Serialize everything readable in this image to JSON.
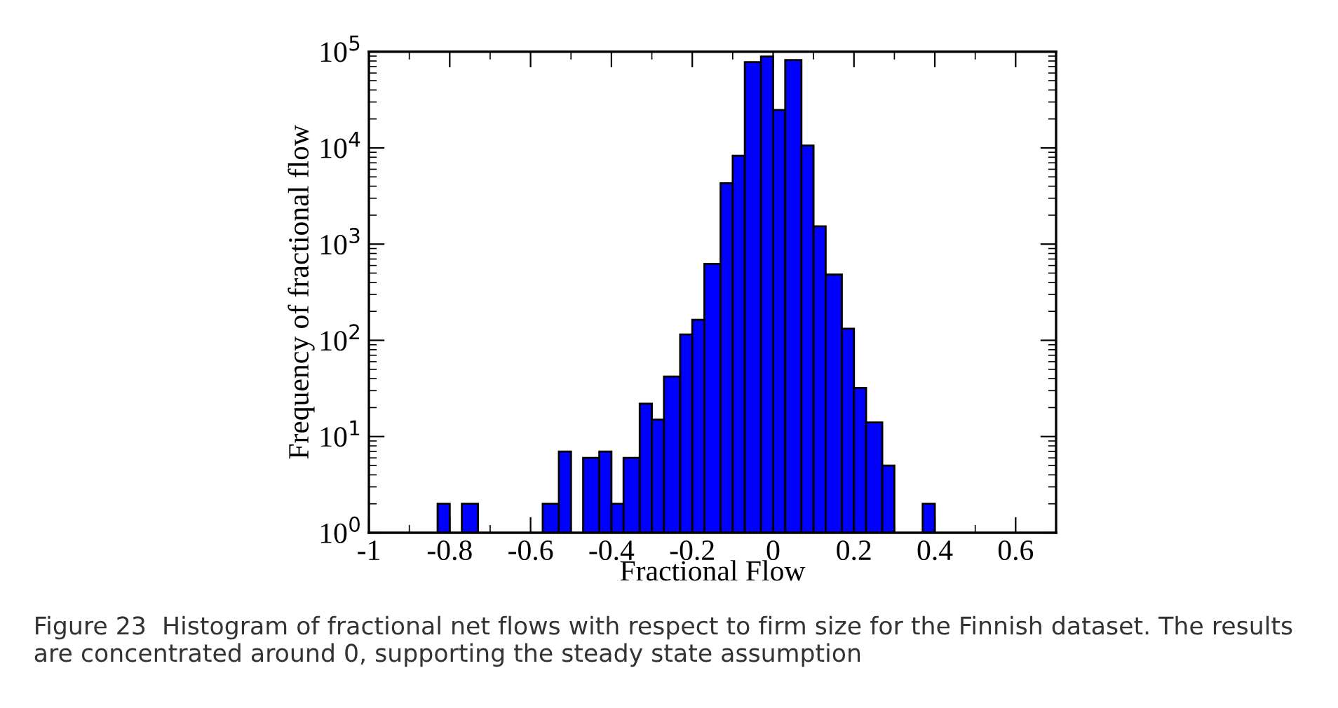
{
  "chart_data": {
    "type": "histogram",
    "xlabel": "Fractional Flow",
    "ylabel": "Frequency of fractional flow",
    "bins": [
      -0.83,
      -0.8,
      -0.77,
      -0.73,
      -0.57,
      -0.53,
      -0.5,
      -0.47,
      -0.43,
      -0.4,
      -0.37,
      -0.33,
      -0.3,
      -0.27,
      -0.23,
      -0.2,
      -0.17,
      -0.13,
      -0.1,
      -0.07,
      -0.03,
      0,
      0.03,
      0.07,
      0.1,
      0.13,
      0.17,
      0.2,
      0.23,
      0.27,
      0.3,
      0.37,
      0.4
    ],
    "values": [
      2,
      null,
      2,
      null,
      2,
      7,
      null,
      6,
      7,
      2,
      6,
      22,
      15,
      42,
      115,
      164,
      624,
      4300,
      8300,
      78000,
      89000,
      24800,
      82000,
      10600,
      1530,
      482,
      132,
      32,
      14,
      5,
      null,
      2
    ],
    "color": "#0000ff",
    "log": "y",
    "grid": false,
    "xlim": [
      -1,
      0.7
    ],
    "xticks": [
      -1,
      -0.8,
      -0.6,
      -0.4,
      -0.2,
      0,
      0.2,
      0.4,
      0.6
    ],
    "ylim": [
      1,
      100000
    ],
    "yticks": [
      {
        "value": 1,
        "label": "10$^{0}$"
      },
      {
        "value": 10,
        "label": "10$^{1}$"
      },
      {
        "value": 100,
        "label": "10$^{2}$"
      },
      {
        "value": 1000,
        "label": "10$^{3}$"
      },
      {
        "value": 10000,
        "label": "10$^{4}$"
      },
      {
        "value": 100000,
        "label": "10$^{5}$"
      }
    ],
    "annotations": [
      "Figure 23  Histogram of fractional net flows with respect to firm size for the Finnish dataset. The results are concentrated around 0, supporting the steady state assumption"
    ]
  }
}
